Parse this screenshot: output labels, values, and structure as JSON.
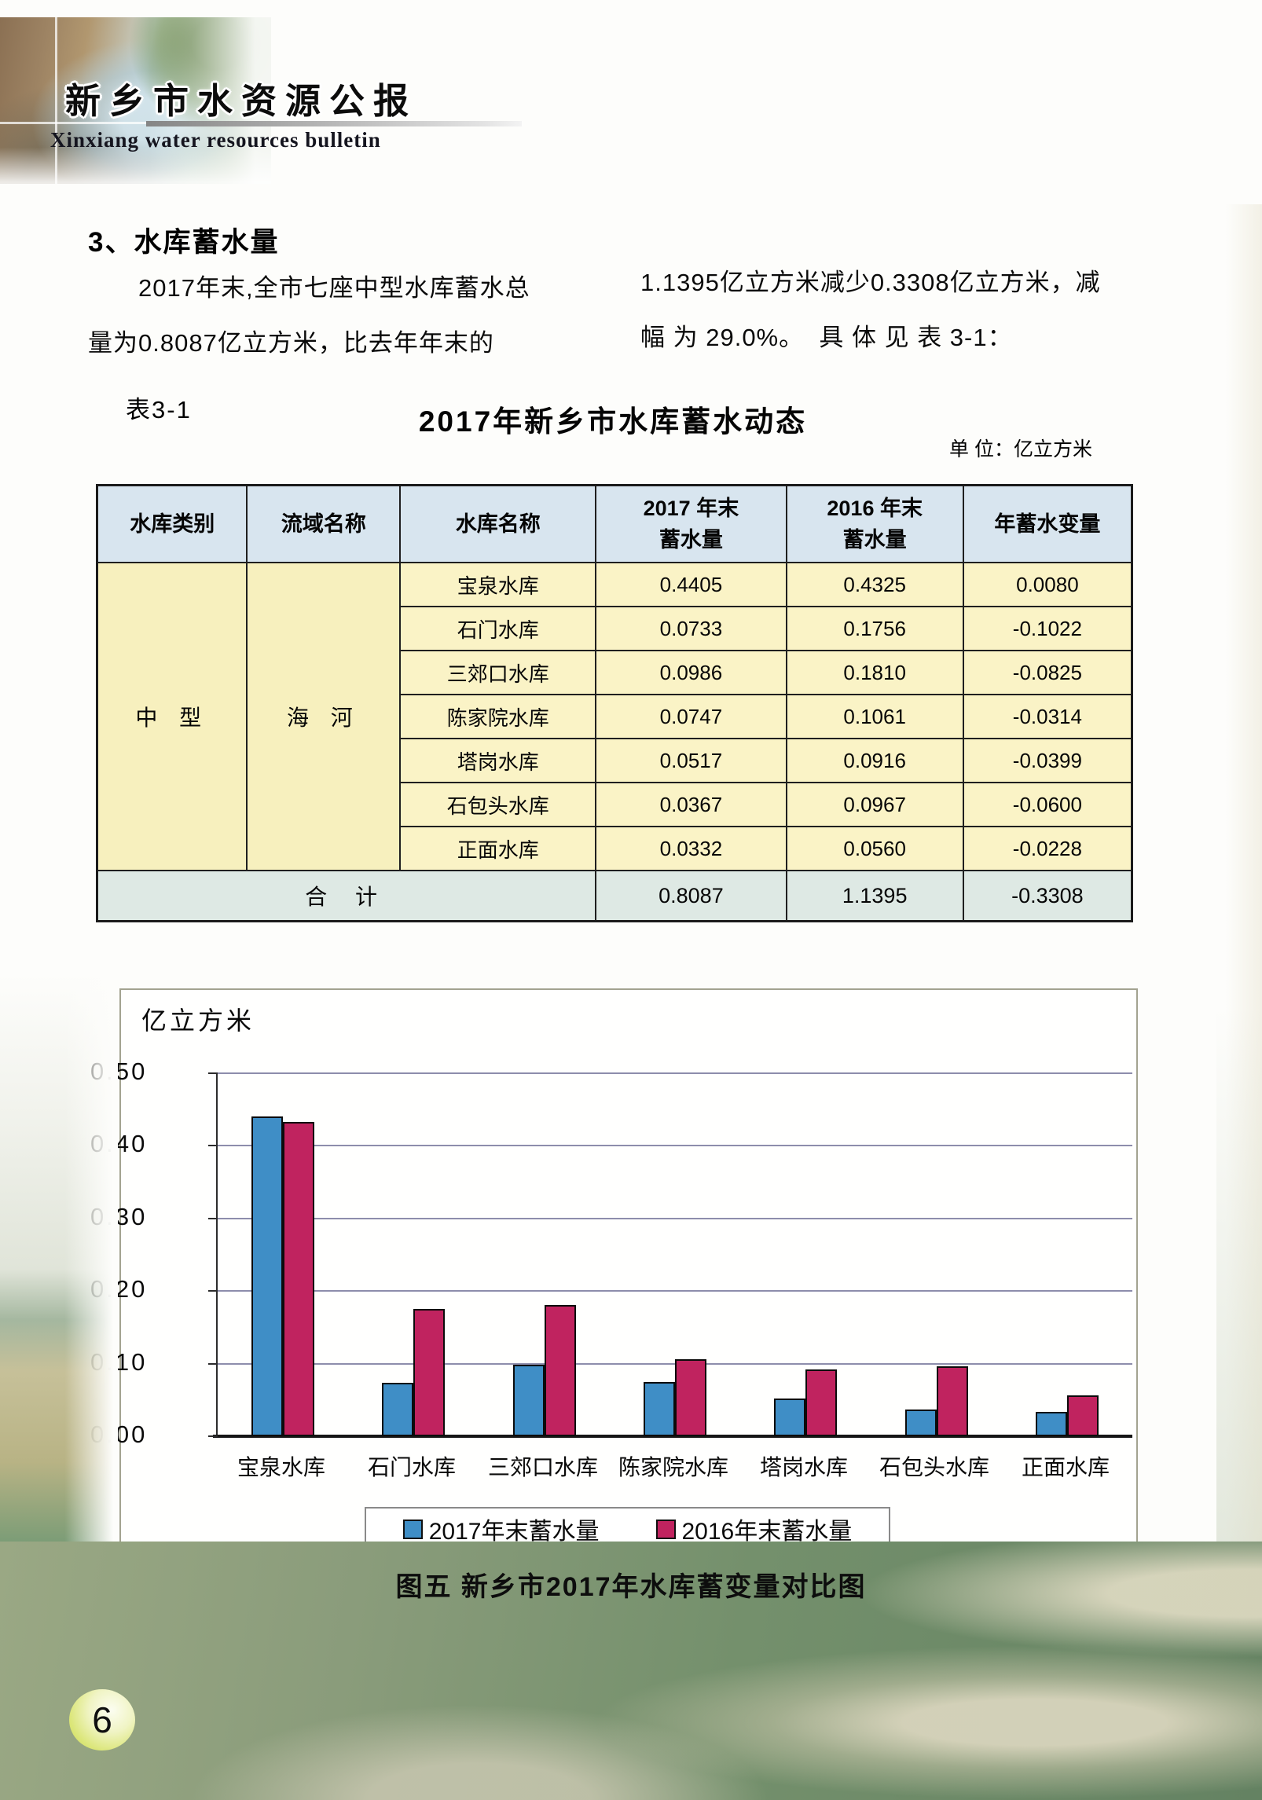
{
  "header": {
    "title_cn": "新乡市水资源公报",
    "title_en": "Xinxiang water resources bulletin"
  },
  "section": {
    "heading": "3、水库蓄水量",
    "paragraph_left": "　　2017年末,全市七座中型水库蓄水总\n量为0.8087亿立方米，比去年年末的",
    "paragraph_right": "1.1395亿立方米减少0.3308亿立方米，减\n幅 为 29.0%。  具 体 见 表 3-1："
  },
  "table": {
    "label": "表3-1",
    "title": "2017年新乡市水库蓄水动态",
    "unit": "单 位：亿立方米",
    "columns": [
      "水库类别",
      "流域名称",
      "水库名称",
      "2017 年末\n蓄水量",
      "2016 年末\n蓄水量",
      "年蓄水变量"
    ],
    "category": "中 型",
    "basin": "海 河",
    "rows": [
      {
        "name": "宝泉水库",
        "y2017": "0.4405",
        "y2016": "0.4325",
        "change": "0.0080"
      },
      {
        "name": "石门水库",
        "y2017": "0.0733",
        "y2016": "0.1756",
        "change": "-0.1022"
      },
      {
        "name": "三郊口水库",
        "y2017": "0.0986",
        "y2016": "0.1810",
        "change": "-0.0825"
      },
      {
        "name": "陈家院水库",
        "y2017": "0.0747",
        "y2016": "0.1061",
        "change": "-0.0314"
      },
      {
        "name": "塔岗水库",
        "y2017": "0.0517",
        "y2016": "0.0916",
        "change": "-0.0399"
      },
      {
        "name": "石包头水库",
        "y2017": "0.0367",
        "y2016": "0.0967",
        "change": "-0.0600"
      },
      {
        "name": "正面水库",
        "y2017": "0.0332",
        "y2016": "0.0560",
        "change": "-0.0228"
      }
    ],
    "total": {
      "label": "合  计",
      "y2017": "0.8087",
      "y2016": "1.1395",
      "change": "-0.3308"
    }
  },
  "chart_data": {
    "type": "bar",
    "y_axis_unit": "亿立方米",
    "categories": [
      "宝泉水库",
      "石门水库",
      "三郊口水库",
      "陈家院水库",
      "塔岗水库",
      "石包头水库",
      "正面水库"
    ],
    "series": [
      {
        "name": "2017年末蓄水量",
        "color": "#3f8ec6",
        "values": [
          0.4405,
          0.0733,
          0.0986,
          0.0747,
          0.0517,
          0.0367,
          0.0332
        ]
      },
      {
        "name": "2016年末蓄水量",
        "color": "#c0235f",
        "values": [
          0.4325,
          0.1756,
          0.181,
          0.1061,
          0.0916,
          0.0967,
          0.056
        ]
      }
    ],
    "ylim": [
      0,
      0.5
    ],
    "ytick_labels": [
      "0.50",
      "0.40",
      "0.30",
      "0.20",
      "0.10",
      "0.00"
    ],
    "grid": true,
    "legend_position": "bottom-inside"
  },
  "figure": {
    "caption": "图五  新乡市2017年水库蓄变量对比图"
  },
  "footer": {
    "page_number": "6"
  }
}
